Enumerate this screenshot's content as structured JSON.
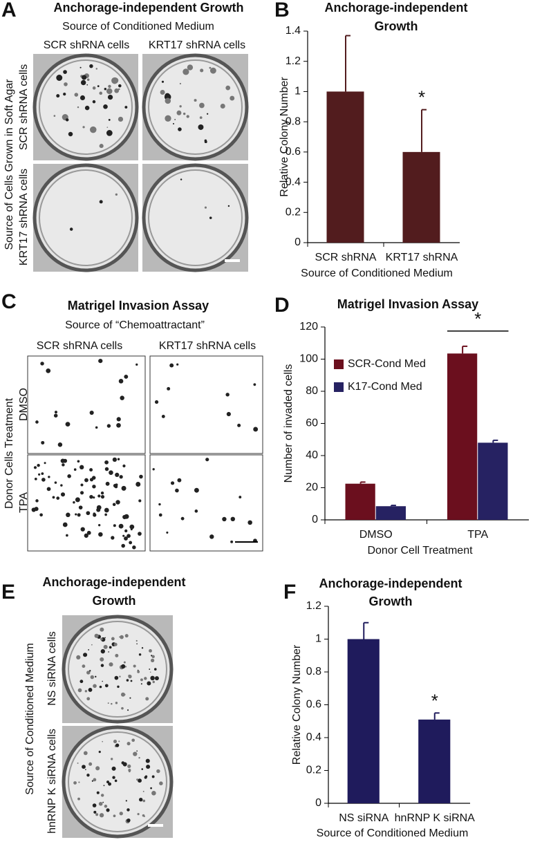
{
  "panels": [
    {
      "letter": "A",
      "title": "Anchorage-independent Growth",
      "subtitle": "Source of Conditioned Medium",
      "columns": [
        "SCR shRNA cells",
        "KRT17 shRNA cells"
      ],
      "side_label": "Source of Cells Grown in Soft Agar",
      "rows": [
        "SCR shRNA cells",
        "KRT17 shRNA cells"
      ]
    },
    {
      "letter": "C",
      "title": "Matrigel Invasion Assay",
      "subtitle": "Source of “Chemoattractant”",
      "columns": [
        "SCR shRNA cells",
        "KRT17 shRNA cells"
      ],
      "side_label": "Donor Cells Treatment",
      "rows": [
        "DMSO",
        "TPA"
      ]
    },
    {
      "letter": "E",
      "title": "Anchorage-independent Growth",
      "side_label": "Source of Conditioned Medium",
      "rows": [
        "NS siRNA cells",
        "hnRNP K siRNA cells"
      ]
    }
  ],
  "chart_data": [
    {
      "type": "bar",
      "panel": "B",
      "title": "Anchorage-independent Growth",
      "categories": [
        "SCR shRNA",
        "KRT17 shRNA"
      ],
      "values": [
        1.0,
        0.6
      ],
      "errors": [
        0.37,
        0.28
      ],
      "color": "#521c1e",
      "ylim": [
        0,
        1.4
      ],
      "yticks": [
        0,
        0.2,
        0.4,
        0.6,
        0.8,
        1,
        1.2,
        1.4
      ],
      "ylabel": "Relative Colony Number",
      "xlabel": "Source of Conditioned Medium",
      "annotation": "*"
    },
    {
      "type": "bar",
      "panel": "D",
      "title": "Matrigel Invasion Assay",
      "categories": [
        "DMSO",
        "TPA"
      ],
      "series": [
        {
          "name": "SCR-Cond Med",
          "color": "#6b0f1e",
          "values": [
            22.5,
            103.5
          ],
          "errors": [
            1,
            4.5
          ]
        },
        {
          "name": "K17-Cond Med",
          "color": "#262262",
          "values": [
            8.5,
            48
          ],
          "errors": [
            0.5,
            1.5
          ]
        }
      ],
      "ylim": [
        0,
        120
      ],
      "yticks": [
        0,
        20,
        40,
        60,
        80,
        100,
        120
      ],
      "ylabel": "Number of invaded cells",
      "xlabel": "Donor Cell Treatment",
      "annotation": "*"
    },
    {
      "type": "bar",
      "panel": "F",
      "title": "Anchorage-independent Growth",
      "categories": [
        "NS siRNA",
        "hnRNP K siRNA"
      ],
      "values": [
        1.0,
        0.51
      ],
      "errors": [
        0.1,
        0.04
      ],
      "color": "#1f1b5c",
      "ylim": [
        0,
        1.2
      ],
      "yticks": [
        0,
        0.2,
        0.4,
        0.6,
        0.8,
        1,
        1.2
      ],
      "ylabel": "Relative Colony Number",
      "xlabel": "Source of Conditioned Medium",
      "annotation": "*"
    }
  ]
}
